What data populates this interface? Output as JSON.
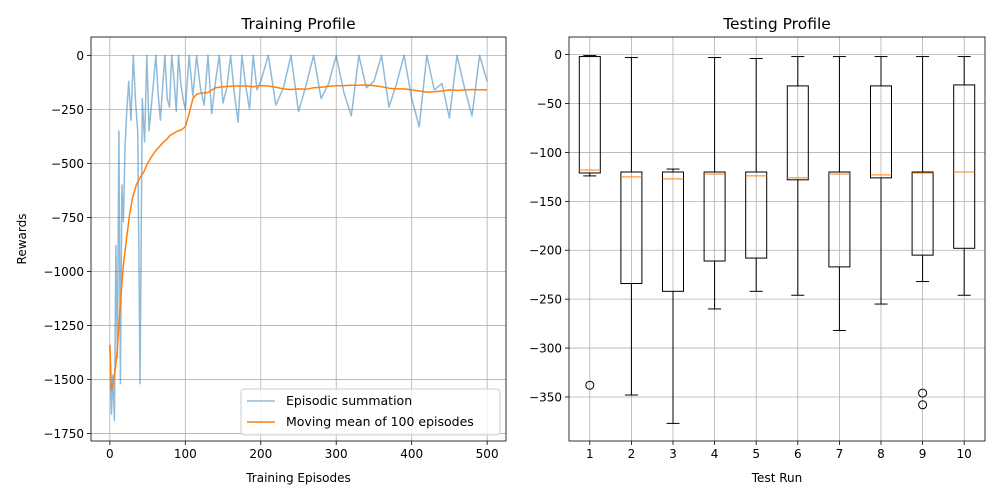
{
  "figure": {
    "background": "#ffffff"
  },
  "colors": {
    "episodic": "#1f77b4",
    "moving_mean": "#ff7f0e",
    "grid": "#b0b0b0",
    "box": "#000000",
    "median": "#ff7f0e"
  },
  "chart_data": [
    {
      "type": "line",
      "title": "Training Profile",
      "xlabel": "Training Episodes",
      "ylabel": "Rewards",
      "xlim": [
        -25,
        525
      ],
      "ylim": [
        -1785,
        85
      ],
      "xticks": [
        0,
        100,
        200,
        300,
        400,
        500
      ],
      "xtick_labels": [
        "0",
        "100",
        "200",
        "300",
        "400",
        "500"
      ],
      "yticks": [
        0,
        -250,
        -500,
        -750,
        -1000,
        -1250,
        -1500,
        -1750
      ],
      "ytick_labels": [
        "0",
        "−250",
        "−500",
        "−750",
        "−1000",
        "−1250",
        "−1500",
        "−1750"
      ],
      "grid": true,
      "legend_position": "lower-right",
      "series": [
        {
          "name": "Episodic summation",
          "style": "noisy",
          "color": "#1f77b4",
          "alpha": 0.5,
          "x": [
            0,
            2,
            4,
            6,
            8,
            10,
            12,
            14,
            16,
            18,
            20,
            22,
            25,
            28,
            31,
            34,
            37,
            40,
            43,
            46,
            49,
            52,
            55,
            58,
            61,
            64,
            67,
            70,
            73,
            76,
            79,
            82,
            85,
            88,
            91,
            94,
            97,
            100,
            105,
            110,
            115,
            120,
            125,
            130,
            135,
            140,
            145,
            150,
            155,
            160,
            165,
            170,
            175,
            180,
            185,
            190,
            195,
            200,
            210,
            220,
            230,
            240,
            250,
            260,
            270,
            280,
            290,
            300,
            310,
            320,
            330,
            340,
            350,
            360,
            370,
            380,
            390,
            400,
            410,
            420,
            430,
            440,
            450,
            460,
            470,
            480,
            490,
            500
          ],
          "values": [
            -1340,
            -1660,
            -1480,
            -1690,
            -880,
            -1400,
            -350,
            -1520,
            -600,
            -770,
            -430,
            -280,
            -120,
            -300,
            0,
            -210,
            -360,
            -1520,
            -200,
            -400,
            0,
            -350,
            -230,
            -120,
            0,
            -180,
            -300,
            -140,
            0,
            -200,
            -240,
            0,
            -110,
            -260,
            0,
            -130,
            -200,
            -250,
            0,
            -190,
            0,
            -150,
            -230,
            0,
            -270,
            -120,
            0,
            -220,
            -150,
            0,
            -180,
            -310,
            0,
            -140,
            -250,
            0,
            -160,
            -120,
            0,
            -230,
            -150,
            0,
            -260,
            -140,
            0,
            -200,
            -130,
            0,
            -170,
            -280,
            0,
            -150,
            -120,
            0,
            -240,
            -130,
            0,
            -200,
            -330,
            0,
            -160,
            -130,
            -290,
            0,
            -150,
            -280,
            0,
            -120
          ]
        },
        {
          "name": "Moving mean of 100 episodes",
          "style": "smooth",
          "color": "#ff7f0e",
          "x": [
            0,
            2,
            4,
            6,
            8,
            10,
            12,
            15,
            18,
            22,
            26,
            30,
            35,
            40,
            45,
            50,
            55,
            60,
            65,
            70,
            75,
            80,
            85,
            90,
            95,
            100,
            105,
            110,
            115,
            120,
            130,
            140,
            150,
            160,
            170,
            180,
            190,
            200,
            210,
            220,
            230,
            240,
            250,
            260,
            270,
            280,
            290,
            300,
            310,
            320,
            330,
            340,
            350,
            360,
            370,
            380,
            390,
            400,
            410,
            420,
            430,
            440,
            450,
            460,
            470,
            480,
            490,
            500
          ],
          "values": [
            -1340,
            -1550,
            -1520,
            -1480,
            -1430,
            -1350,
            -1250,
            -1100,
            -970,
            -850,
            -740,
            -660,
            -600,
            -565,
            -540,
            -500,
            -470,
            -445,
            -425,
            -405,
            -390,
            -370,
            -360,
            -350,
            -345,
            -330,
            -270,
            -200,
            -180,
            -175,
            -172,
            -150,
            -145,
            -143,
            -142,
            -142,
            -145,
            -140,
            -142,
            -148,
            -155,
            -158,
            -155,
            -157,
            -150,
            -148,
            -143,
            -141,
            -140,
            -138,
            -138,
            -137,
            -140,
            -145,
            -152,
            -155,
            -155,
            -160,
            -165,
            -170,
            -168,
            -165,
            -160,
            -162,
            -160,
            -158,
            -160,
            -160
          ]
        }
      ]
    },
    {
      "type": "box",
      "title": "Testing Profile",
      "xlabel": "Test Run",
      "ylabel": "",
      "categories": [
        "1",
        "2",
        "3",
        "4",
        "5",
        "6",
        "7",
        "8",
        "9",
        "10"
      ],
      "ylim": [
        -395,
        18
      ],
      "yticks": [
        0,
        -50,
        -100,
        -150,
        -200,
        -250,
        -300,
        -350
      ],
      "ytick_labels": [
        "0",
        "−50",
        "−100",
        "−150",
        "−200",
        "−250",
        "−300",
        "−350"
      ],
      "grid": true,
      "boxes": [
        {
          "whisker_low": -124,
          "q1": -121,
          "median": -118,
          "q3": -2,
          "whisker_high": -1,
          "outliers": [
            -338
          ]
        },
        {
          "whisker_low": -348,
          "q1": -234,
          "median": -125,
          "q3": -120,
          "whisker_high": -3,
          "outliers": []
        },
        {
          "whisker_low": -377,
          "q1": -242,
          "median": -127,
          "q3": -120,
          "whisker_high": -117,
          "outliers": []
        },
        {
          "whisker_low": -260,
          "q1": -211,
          "median": -122,
          "q3": -120,
          "whisker_high": -3,
          "outliers": []
        },
        {
          "whisker_low": -242,
          "q1": -208,
          "median": -124,
          "q3": -120,
          "whisker_high": -4,
          "outliers": []
        },
        {
          "whisker_low": -246,
          "q1": -128,
          "median": -126,
          "q3": -32,
          "whisker_high": -2,
          "outliers": []
        },
        {
          "whisker_low": -282,
          "q1": -217,
          "median": -122,
          "q3": -120,
          "whisker_high": -2,
          "outliers": []
        },
        {
          "whisker_low": -255,
          "q1": -126,
          "median": -123,
          "q3": -32,
          "whisker_high": -2,
          "outliers": []
        },
        {
          "whisker_low": -232,
          "q1": -205,
          "median": -121,
          "q3": -120,
          "whisker_high": -2,
          "outliers": [
            -346,
            -358
          ]
        },
        {
          "whisker_low": -246,
          "q1": -198,
          "median": -120,
          "q3": -31,
          "whisker_high": -2,
          "outliers": []
        }
      ]
    }
  ]
}
